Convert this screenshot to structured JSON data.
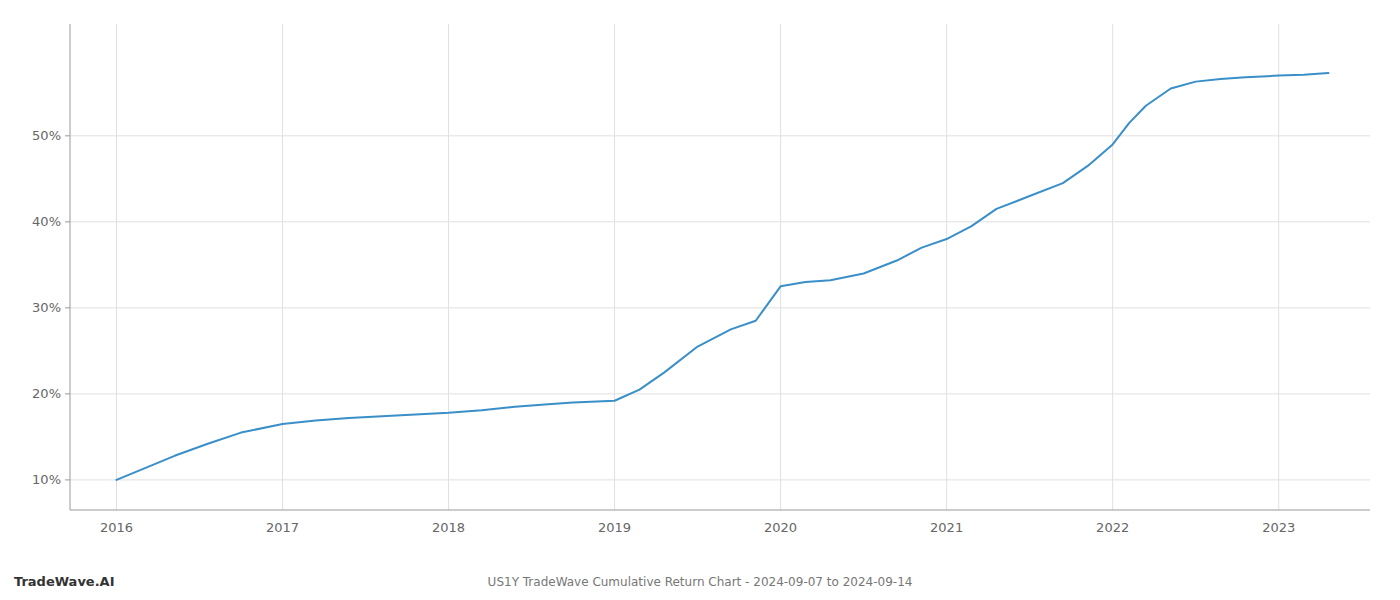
{
  "chart_data": {
    "type": "line",
    "title": "US1Y TradeWave Cumulative Return Chart - 2024-09-07 to 2024-09-14",
    "annotations": [
      "TradeWave.AI"
    ],
    "color": "#3a8fc8",
    "grid": true,
    "x": [
      2016.0,
      2016.15,
      2016.35,
      2016.55,
      2016.75,
      2017.0,
      2017.2,
      2017.4,
      2017.6,
      2017.8,
      2018.0,
      2018.2,
      2018.4,
      2018.6,
      2018.75,
      2019.0,
      2019.15,
      2019.3,
      2019.5,
      2019.7,
      2019.85,
      2020.0,
      2020.15,
      2020.3,
      2020.5,
      2020.7,
      2020.85,
      2021.0,
      2021.15,
      2021.3,
      2021.5,
      2021.7,
      2021.85,
      2022.0,
      2022.1,
      2022.2,
      2022.35,
      2022.5,
      2022.65,
      2022.8,
      2022.9,
      2023.0,
      2023.15,
      2023.3
    ],
    "values": [
      10.0,
      11.2,
      12.8,
      14.2,
      15.5,
      16.5,
      16.9,
      17.2,
      17.4,
      17.6,
      17.8,
      18.1,
      18.5,
      18.8,
      19.0,
      19.2,
      20.5,
      22.5,
      25.5,
      27.5,
      28.5,
      32.5,
      33.0,
      33.2,
      34.0,
      35.5,
      37.0,
      38.0,
      39.5,
      41.5,
      43.0,
      44.5,
      46.5,
      49.0,
      51.5,
      53.5,
      55.5,
      56.3,
      56.6,
      56.8,
      56.9,
      57.0,
      57.1,
      57.3
    ],
    "xlim": [
      2015.72,
      2023.55
    ],
    "ylim": [
      6.5,
      63
    ],
    "xticks": [
      2016,
      2017,
      2018,
      2019,
      2020,
      2021,
      2022,
      2023
    ],
    "yticks": [
      {
        "value": 10,
        "label": "10%"
      },
      {
        "value": 20,
        "label": "20%"
      },
      {
        "value": 30,
        "label": "30%"
      },
      {
        "value": 40,
        "label": "40%"
      },
      {
        "value": 50,
        "label": "50%"
      }
    ]
  }
}
